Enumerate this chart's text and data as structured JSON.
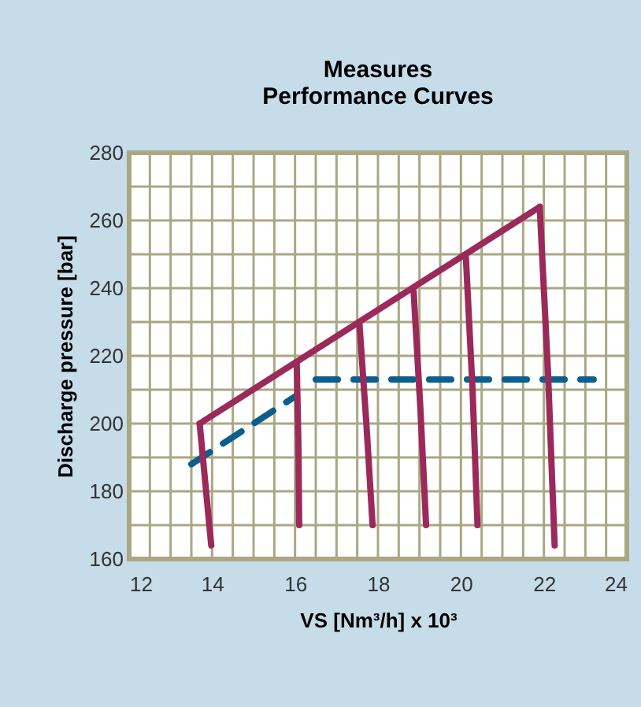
{
  "chart_data": {
    "type": "line",
    "title": "Measures\nPerformance Curves",
    "xlabel": "VS [Nm³/h] x 10³",
    "ylabel": "Discharge pressure [bar]",
    "xlim": [
      12,
      24
    ],
    "ylim": [
      160,
      280
    ],
    "xticks": [
      12,
      {
        "value": 12.5,
        "label": null
      },
      {
        "value": 13,
        "label": null
      },
      {
        "value": 13.5,
        "label": null
      },
      14,
      {
        "value": 14.5,
        "label": null
      },
      {
        "value": 15,
        "label": null
      },
      {
        "value": 15.5,
        "label": null
      },
      16,
      {
        "value": 16.5,
        "label": null
      },
      {
        "value": 17,
        "label": null
      },
      {
        "value": 17.5,
        "label": null
      },
      18,
      {
        "value": 18.5,
        "label": null
      },
      {
        "value": 19,
        "label": null
      },
      {
        "value": 19.5,
        "label": null
      },
      20,
      {
        "value": 20.5,
        "label": null
      },
      {
        "value": 21,
        "label": null
      },
      {
        "value": 21.5,
        "label": null
      },
      22,
      {
        "value": 22.5,
        "label": null
      },
      {
        "value": 23,
        "label": null
      },
      {
        "value": 23.5,
        "label": null
      },
      24
    ],
    "yticks": [
      160,
      {
        "value": 170,
        "label": null
      },
      180,
      {
        "value": 190,
        "label": null
      },
      200,
      {
        "value": 210,
        "label": null
      },
      220,
      {
        "value": 230,
        "label": null
      },
      240,
      {
        "value": 250,
        "label": null
      },
      260,
      {
        "value": 270,
        "label": null
      },
      280
    ],
    "grid": true,
    "series": [
      {
        "color": "#0b5e8e",
        "line_style": "dashed",
        "x": [
          13.5,
          16.0
        ],
        "values": [
          188,
          208
        ]
      },
      {
        "color": "#0b5e8e",
        "line_style": "dashed",
        "x": [
          16.5,
          23.2
        ],
        "values": [
          213,
          213
        ]
      },
      {
        "color": "#9b2a5a",
        "line_style": "solid",
        "x": [
          13.7,
          21.9
        ],
        "values": [
          200,
          264
        ]
      },
      {
        "color": "#9b2a5a",
        "line_style": "solid",
        "x": [
          13.7,
          13.98
        ],
        "values": [
          200,
          164
        ]
      },
      {
        "color": "#9b2a5a",
        "line_style": "solid",
        "x": [
          16.04,
          16.08,
          16.1
        ],
        "values": [
          218,
          195,
          170
        ]
      },
      {
        "color": "#9b2a5a",
        "line_style": "solid",
        "x": [
          17.55,
          17.72,
          17.87
        ],
        "values": [
          230,
          200,
          170
        ]
      },
      {
        "color": "#9b2a5a",
        "line_style": "solid",
        "x": [
          18.86,
          19.02,
          19.16
        ],
        "values": [
          239,
          205,
          170
        ]
      },
      {
        "color": "#9b2a5a",
        "line_style": "solid",
        "x": [
          20.12,
          20.28,
          20.4
        ],
        "values": [
          249,
          210,
          170
        ]
      },
      {
        "color": "#9b2a5a",
        "line_style": "solid",
        "x": [
          21.9,
          22.1,
          22.26
        ],
        "values": [
          264,
          215,
          164
        ]
      }
    ]
  }
}
